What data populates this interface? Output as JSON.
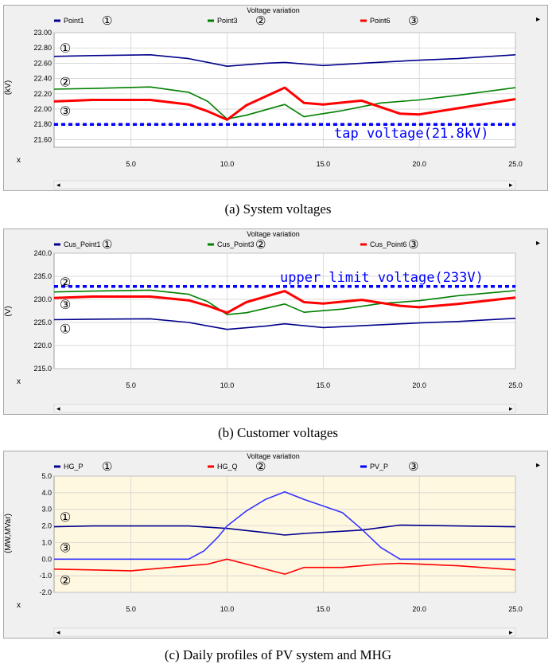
{
  "chart_data": [
    {
      "type": "line",
      "title": "Voltage variation",
      "ylabel": "(kV)",
      "xlabel": "x",
      "ylim": [
        21.5,
        23.0
      ],
      "xlim": [
        1,
        25
      ],
      "yticks": [
        "23.00",
        "22.80",
        "22.60",
        "22.40",
        "22.20",
        "22.00",
        "21.80",
        "21.60"
      ],
      "xticks": [
        "5.0",
        "10.0",
        "15.0",
        "20.0",
        "25.0"
      ],
      "legend": [
        {
          "label": "Point1",
          "marker": "①",
          "color": "#00008b"
        },
        {
          "label": "Point3",
          "marker": "②",
          "color": "#008000"
        },
        {
          "label": "Point6",
          "marker": "③",
          "color": "#ff0000"
        }
      ],
      "curve_markers": [
        {
          "text": "①",
          "y": 22.79
        },
        {
          "text": "②",
          "y": 22.35
        },
        {
          "text": "③",
          "y": 21.97
        }
      ],
      "reference": {
        "y": 21.8,
        "label": "tap voltage(21.8kV)",
        "color": "#0000ff"
      },
      "series": [
        {
          "name": "Point1",
          "color": "#00008b",
          "x": [
            1,
            3,
            6,
            8,
            10,
            12,
            13,
            15,
            17,
            20,
            22,
            25
          ],
          "values": [
            22.69,
            22.7,
            22.71,
            22.66,
            22.56,
            22.6,
            22.61,
            22.57,
            22.6,
            22.64,
            22.66,
            22.71
          ]
        },
        {
          "name": "Point3",
          "color": "#008000",
          "x": [
            1,
            3,
            6,
            8,
            9,
            10,
            11,
            13,
            14,
            16,
            18,
            20,
            22,
            25
          ],
          "values": [
            22.26,
            22.27,
            22.29,
            22.22,
            22.1,
            21.87,
            21.92,
            22.06,
            21.9,
            21.98,
            22.08,
            22.12,
            22.18,
            22.28
          ]
        },
        {
          "name": "Point6",
          "color": "#ff0000",
          "x": [
            1,
            3,
            6,
            8,
            9,
            10,
            11,
            13,
            14,
            15,
            17,
            19,
            20,
            22,
            25
          ],
          "values": [
            22.1,
            22.12,
            22.12,
            22.06,
            21.97,
            21.86,
            22.05,
            22.28,
            22.08,
            22.06,
            22.11,
            21.94,
            21.93,
            22.01,
            22.13
          ]
        }
      ]
    },
    {
      "type": "line",
      "title": "Voltage variation",
      "ylabel": "(V)",
      "xlabel": "x",
      "ylim": [
        215.0,
        240.0
      ],
      "xlim": [
        1,
        25
      ],
      "yticks": [
        "240.0",
        "235.0",
        "230.0",
        "225.0",
        "220.0",
        "215.0"
      ],
      "xticks": [
        "5.0",
        "10.0",
        "15.0",
        "20.0",
        "25.0"
      ],
      "legend": [
        {
          "label": "Cus_Point1",
          "marker": "①",
          "color": "#00008b"
        },
        {
          "label": "Cus_Point3",
          "marker": "②",
          "color": "#008000"
        },
        {
          "label": "Cus_Point6",
          "marker": "③",
          "color": "#ff0000"
        }
      ],
      "curve_markers": [
        {
          "text": "②",
          "y": 233.6
        },
        {
          "text": "③",
          "y": 228.8
        },
        {
          "text": "①",
          "y": 223.5
        }
      ],
      "reference": {
        "y": 232.8,
        "label": "upper limit voltage(233V)",
        "color": "#0000ff"
      },
      "series": [
        {
          "name": "Cus_Point1",
          "color": "#00008b",
          "x": [
            1,
            3,
            6,
            8,
            10,
            12,
            13,
            15,
            17,
            20,
            22,
            25
          ],
          "values": [
            225.6,
            225.7,
            225.8,
            225.0,
            223.5,
            224.2,
            224.7,
            223.9,
            224.3,
            224.9,
            225.2,
            225.9
          ]
        },
        {
          "name": "Cus_Point3",
          "color": "#008000",
          "x": [
            1,
            3,
            6,
            8,
            9,
            10,
            11,
            13,
            14,
            16,
            18,
            20,
            22,
            25
          ],
          "values": [
            231.6,
            231.8,
            232.0,
            231.1,
            229.5,
            226.7,
            227.1,
            229.0,
            227.2,
            227.9,
            229.1,
            229.7,
            230.8,
            231.9
          ]
        },
        {
          "name": "Cus_Point6",
          "color": "#ff0000",
          "x": [
            1,
            3,
            6,
            8,
            9,
            10,
            11,
            13,
            14,
            15,
            17,
            19,
            20,
            22,
            25
          ],
          "values": [
            230.3,
            230.6,
            230.6,
            229.8,
            228.6,
            227.1,
            229.4,
            231.8,
            229.4,
            229.1,
            229.9,
            228.6,
            228.3,
            229.0,
            230.4
          ]
        }
      ]
    },
    {
      "type": "line",
      "title": "Voltage variation",
      "ylabel": "(MW,MVar)",
      "xlabel": "x",
      "ylim": [
        -2.0,
        5.0
      ],
      "xlim": [
        1,
        25
      ],
      "yticks": [
        "5.0",
        "4.0",
        "3.0",
        "2.0",
        "1.0",
        "0.0",
        "-1.0",
        "-2.0"
      ],
      "xticks": [
        "5.0",
        "10.0",
        "15.0",
        "20.0",
        "25.0"
      ],
      "legend": [
        {
          "label": "HG_P",
          "marker": "①",
          "color": "#00008b"
        },
        {
          "label": "HG_Q",
          "marker": "②",
          "color": "#ff0000"
        },
        {
          "label": "PV_P",
          "marker": "③",
          "color": "#0000ff"
        }
      ],
      "curve_markers": [
        {
          "text": "①",
          "y": 2.5
        },
        {
          "text": "③",
          "y": 0.65
        },
        {
          "text": "②",
          "y": -1.3
        }
      ],
      "series": [
        {
          "name": "HG_P",
          "color": "#00008b",
          "x": [
            1,
            3,
            8,
            10,
            12,
            13,
            14,
            17,
            19,
            22,
            25
          ],
          "values": [
            1.95,
            2.0,
            2.0,
            1.85,
            1.6,
            1.45,
            1.55,
            1.75,
            2.05,
            2.0,
            1.95
          ]
        },
        {
          "name": "HG_Q",
          "color": "#ff0000",
          "x": [
            1,
            5,
            8,
            9,
            10,
            11,
            13,
            14,
            16,
            18,
            19,
            22,
            25
          ],
          "values": [
            -0.6,
            -0.7,
            -0.4,
            -0.3,
            0.0,
            -0.3,
            -0.9,
            -0.5,
            -0.5,
            -0.3,
            -0.25,
            -0.4,
            -0.65
          ]
        },
        {
          "name": "PV_P",
          "color": "#3333ff",
          "x": [
            1,
            8,
            8.8,
            9.5,
            10,
            11,
            12,
            13,
            14,
            15,
            16,
            17,
            18,
            19,
            25
          ],
          "values": [
            0.0,
            0.0,
            0.5,
            1.3,
            2.0,
            2.9,
            3.6,
            4.05,
            3.6,
            3.2,
            2.8,
            1.8,
            0.7,
            0.0,
            0.0
          ]
        }
      ]
    }
  ],
  "captions": [
    "(a)  System  voltages",
    "(b)  Customer  voltages",
    "(c)  Daily  profiles  of  PV  system  and  MHG"
  ],
  "colors": {
    "plot_bg_a": "#ffffff",
    "plot_bg_c": "#fff8e1",
    "grid": "#cccccc",
    "frame": "#f0f0f0"
  }
}
